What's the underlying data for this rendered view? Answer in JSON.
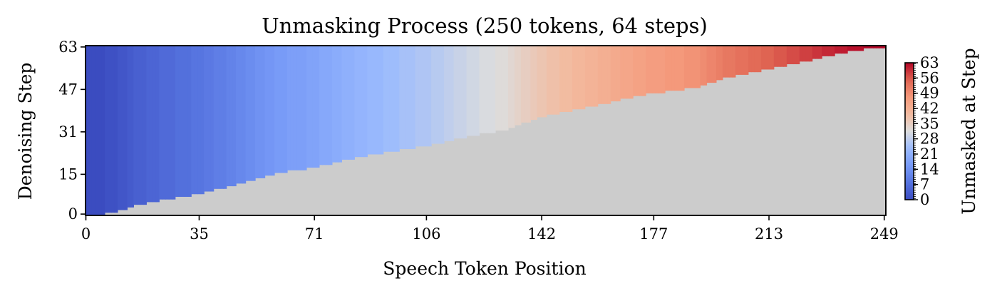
{
  "chart_data": {
    "type": "heatmap",
    "title": "Unmasking Process (250 tokens, 64 steps)",
    "xlabel": "Speech Token Position",
    "ylabel": "Denoising Step",
    "colorbar_label": "Unmasked at Step",
    "n_tokens": 250,
    "n_steps": 64,
    "xlim": [
      0,
      249
    ],
    "ylim": [
      0,
      63
    ],
    "x_ticks": [
      0,
      35,
      71,
      106,
      142,
      177,
      213,
      249
    ],
    "y_ticks": [
      0,
      15,
      31,
      47,
      63
    ],
    "colorbar_ticks": [
      0,
      7,
      14,
      21,
      28,
      35,
      42,
      49,
      56,
      63
    ],
    "colormap": "coolwarm",
    "masked_color": "#cccccc",
    "unmask_step_anchors": [
      [
        0,
        0
      ],
      [
        3,
        0
      ],
      [
        8,
        1
      ],
      [
        12,
        2
      ],
      [
        16,
        4
      ],
      [
        25,
        6
      ],
      [
        35,
        8
      ],
      [
        45,
        11
      ],
      [
        60,
        16
      ],
      [
        71,
        18
      ],
      [
        85,
        22
      ],
      [
        100,
        25
      ],
      [
        106,
        26
      ],
      [
        120,
        30
      ],
      [
        130,
        32
      ],
      [
        142,
        37
      ],
      [
        150,
        39
      ],
      [
        165,
        43
      ],
      [
        177,
        46
      ],
      [
        190,
        48
      ],
      [
        200,
        52
      ],
      [
        213,
        55
      ],
      [
        225,
        58
      ],
      [
        235,
        61
      ],
      [
        245,
        63
      ],
      [
        249,
        63
      ]
    ]
  }
}
